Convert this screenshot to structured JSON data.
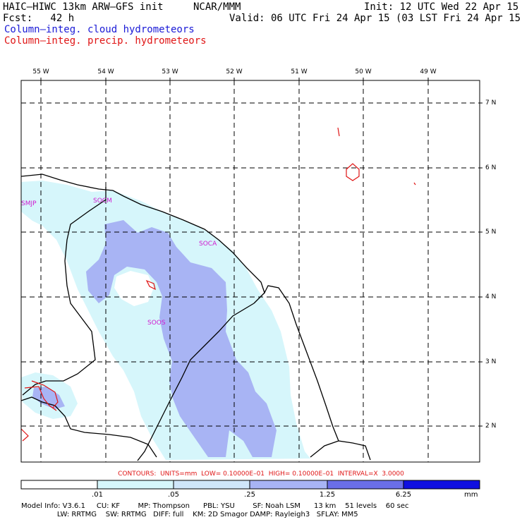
{
  "header": {
    "model": "HAIC–HIWC 13km ARW–GFS init",
    "org": "NCAR/MMM",
    "forecast": "Fcst:   42 h",
    "init": "Init: 12 UTC Wed 22 Apr 15",
    "valid": "Valid: 06 UTC Fri 24 Apr 15 (03 LST Fri 24 Apr 15)",
    "legend_cloud": "Column–integ. cloud hydrometeors",
    "legend_precip": "Column–integ. precip. hydrometeors"
  },
  "map": {
    "longitude_labels": [
      "55 W",
      "54 W",
      "53 W",
      "52 W",
      "51 W",
      "50 W",
      "49 W"
    ],
    "latitude_labels": [
      "7 N",
      "6 N",
      "5 N",
      "4 N",
      "3 N",
      "2 N"
    ],
    "stations": [
      "SMJP",
      "SOCM",
      "SOCA",
      "SOOS"
    ]
  },
  "colors": {
    "very_light": "#d6f6fb",
    "light": "#a8b4f4",
    "precip_contour": "#e01515",
    "station": "#d01ad0"
  },
  "contours_text": "CONTOURS:  UNITS=mm  LOW= 0.10000E–01  HIGH= 0.10000E–01  INTERVAL=X  3.0000",
  "colorbar": {
    "labels": [
      ".01",
      ".05",
      ".25",
      "1.25",
      "6.25"
    ],
    "unit": "mm",
    "colors": [
      "#ffffff",
      "#d6f6fb",
      "#cfe6fa",
      "#a8b4f4",
      "#6a6ee8",
      "#3c3ce6",
      "#1010e0"
    ]
  },
  "footer": {
    "line1": "Model Info: V3.6.1     CU: KF        MP: Thompson      PBL: YSU        SF: Noah LSM      13 km    51 levels    60 sec",
    "line2": "                LW: RRTMG    SW: RRTMG   DIFF: full    KM: 2D Smagor DAMP: Rayleigh3   SFLAY: MM5"
  }
}
